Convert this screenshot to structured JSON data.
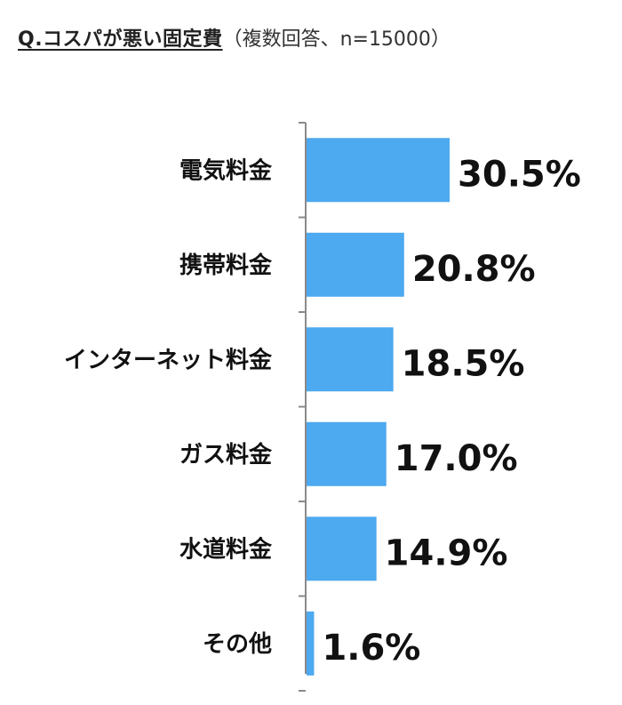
{
  "chart_data": {
    "type": "bar",
    "orientation": "horizontal",
    "title": "Q.コスパが悪い固定費",
    "subtitle": "（複数回答、n=15000）",
    "categories": [
      "電気料金",
      "携帯料金",
      "インターネット料金",
      "ガス料金",
      "水道料金",
      "その他"
    ],
    "values": [
      30.5,
      20.8,
      18.5,
      17.0,
      14.9,
      1.6
    ],
    "value_labels": [
      "30.5%",
      "20.8%",
      "18.5%",
      "17.0%",
      "14.9%",
      "1.6%"
    ],
    "unit": "%",
    "xlim": [
      0,
      100
    ],
    "grid": false,
    "legend": "none",
    "bar_color": "#4da9f0"
  }
}
